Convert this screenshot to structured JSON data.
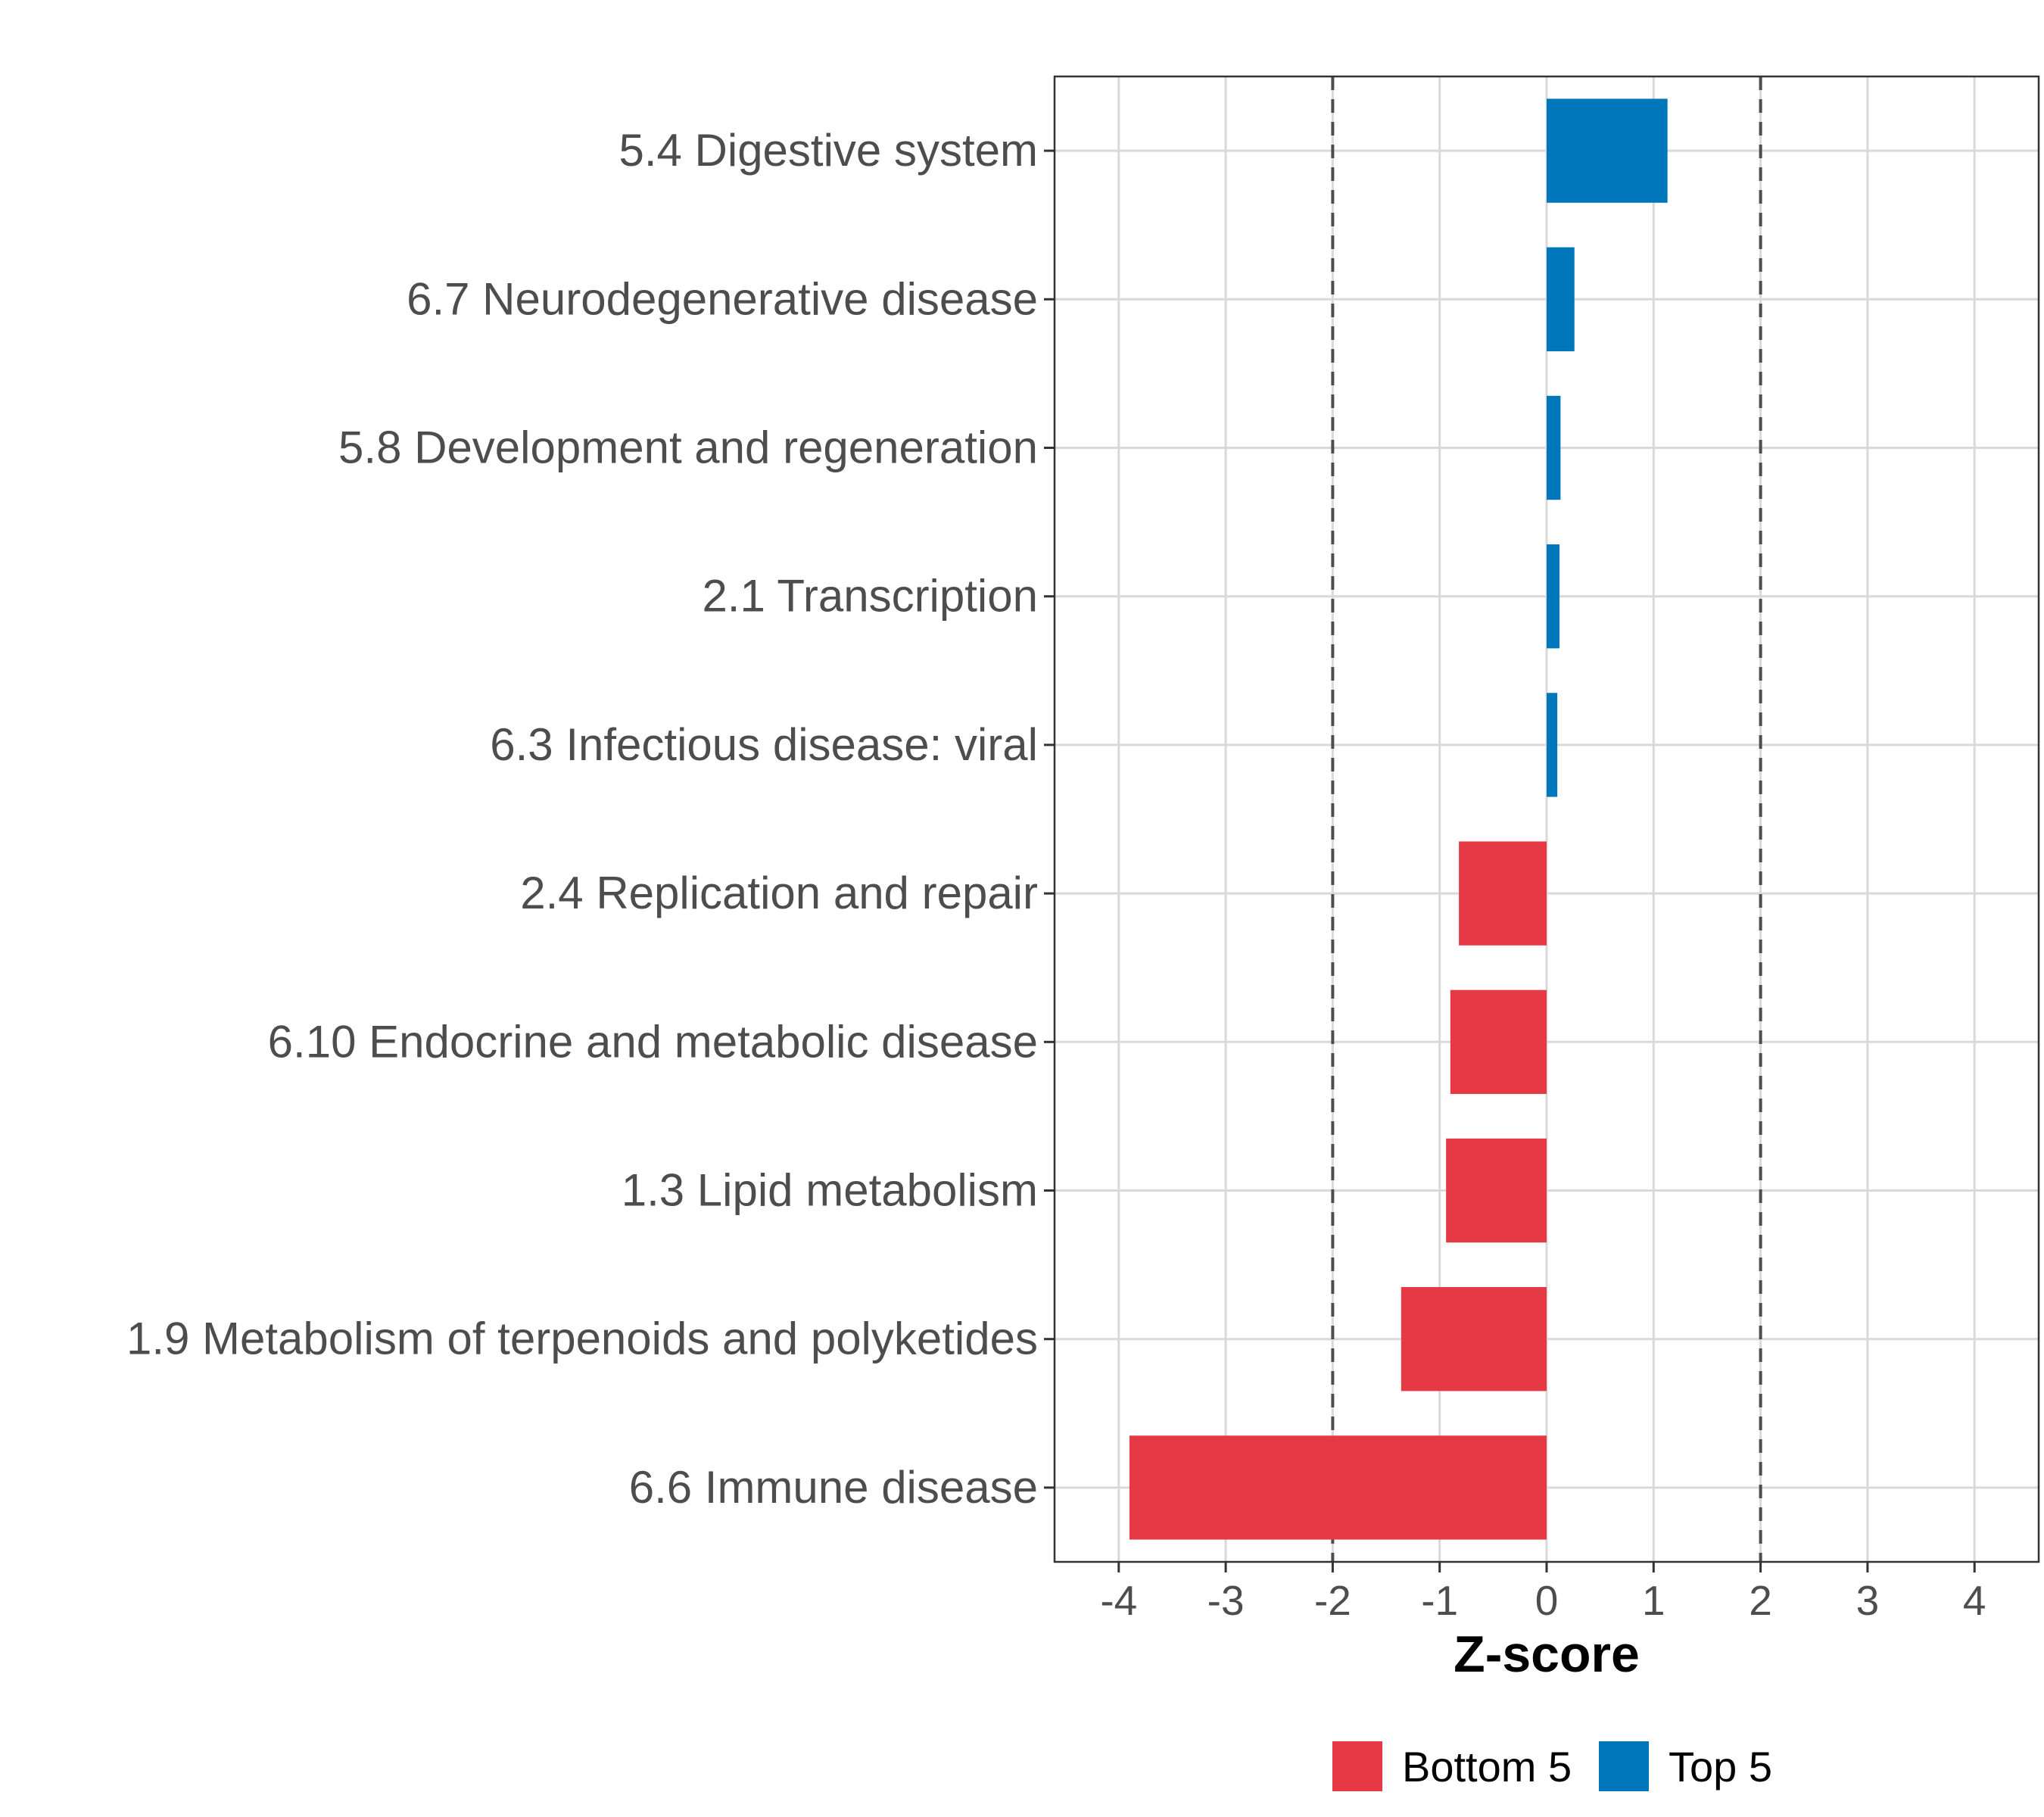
{
  "chart_data": {
    "type": "bar",
    "orientation": "horizontal",
    "title": "",
    "xlabel": "Z-score",
    "ylabel": "",
    "xlim": [
      -4.6,
      4.6
    ],
    "xticks": [
      -4,
      -3,
      -2,
      -1,
      0,
      1,
      2,
      3,
      4
    ],
    "xtick_labels": [
      "-4",
      "-3",
      "-2",
      "-1",
      "0",
      "1",
      "2",
      "3",
      "4"
    ],
    "reference_lines": [
      -2,
      2
    ],
    "grid": true,
    "legend_position": "bottom",
    "categories": [
      "5.4 Digestive system",
      "6.7 Neurodegenerative disease",
      "5.8 Development and regeneration",
      "2.1 Transcription",
      "6.3 Infectious disease: viral",
      "2.4 Replication and repair",
      "6.10 Endocrine and metabolic disease",
      "1.3 Lipid metabolism",
      "1.9 Metabolism of terpenoids and polyketides",
      "6.6 Immune disease"
    ],
    "values": [
      1.13,
      0.26,
      0.13,
      0.12,
      0.1,
      -0.82,
      -0.9,
      -0.94,
      -1.36,
      -3.9
    ],
    "groups": [
      "Top 5",
      "Top 5",
      "Top 5",
      "Top 5",
      "Top 5",
      "Bottom 5",
      "Bottom 5",
      "Bottom 5",
      "Bottom 5",
      "Bottom 5"
    ],
    "legend": [
      {
        "name": "Bottom 5",
        "color": "#e63946"
      },
      {
        "name": "Top 5",
        "color": "#0077bb"
      }
    ]
  }
}
